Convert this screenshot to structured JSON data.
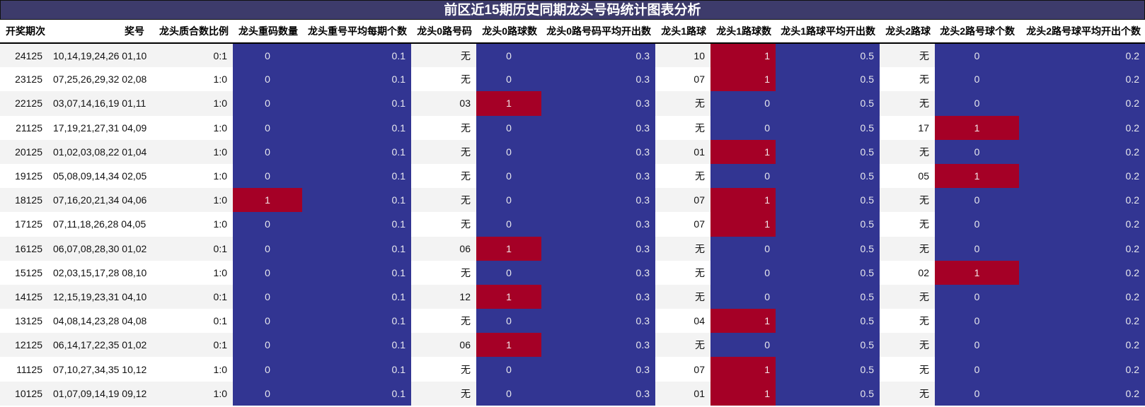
{
  "title": "前区近15期历史同期龙头号码统计图表分析",
  "colors": {
    "title_bg": "#3d3b6b",
    "blue": "#323592",
    "red": "#a50026",
    "stripe": "#f3f3f3"
  },
  "headers": [
    "开奖期次",
    "奖号",
    "龙头质合数比例",
    "龙头重码数量",
    "龙头重号平均每期个数",
    "龙头0路号码",
    "龙头0路球数",
    "龙头0路号码平均开出数",
    "龙头1路球",
    "龙头1路球数",
    "龙头1路球平均开出数",
    "龙头2路球",
    "龙头2路号球个数",
    "龙头2路号球平均开出个数"
  ],
  "rows": [
    {
      "issue": "24125",
      "numbers": "10,14,19,24,26 01,10",
      "ratio": "0:1",
      "repeat": "0",
      "repeat_avg": "0.1",
      "r0": "无",
      "r0_count": "0",
      "r0_avg": "0.3",
      "r1": "10",
      "r1_count": "1",
      "r1_avg": "0.5",
      "r2": "无",
      "r2_count": "0",
      "r2_avg": "0.2"
    },
    {
      "issue": "23125",
      "numbers": "07,25,26,29,32 02,08",
      "ratio": "1:0",
      "repeat": "0",
      "repeat_avg": "0.1",
      "r0": "无",
      "r0_count": "0",
      "r0_avg": "0.3",
      "r1": "07",
      "r1_count": "1",
      "r1_avg": "0.5",
      "r2": "无",
      "r2_count": "0",
      "r2_avg": "0.2"
    },
    {
      "issue": "22125",
      "numbers": "03,07,14,16,19 01,11",
      "ratio": "1:0",
      "repeat": "0",
      "repeat_avg": "0.1",
      "r0": "03",
      "r0_count": "1",
      "r0_avg": "0.3",
      "r1": "无",
      "r1_count": "0",
      "r1_avg": "0.5",
      "r2": "无",
      "r2_count": "0",
      "r2_avg": "0.2"
    },
    {
      "issue": "21125",
      "numbers": "17,19,21,27,31 04,09",
      "ratio": "1:0",
      "repeat": "0",
      "repeat_avg": "0.1",
      "r0": "无",
      "r0_count": "0",
      "r0_avg": "0.3",
      "r1": "无",
      "r1_count": "0",
      "r1_avg": "0.5",
      "r2": "17",
      "r2_count": "1",
      "r2_avg": "0.2"
    },
    {
      "issue": "20125",
      "numbers": "01,02,03,08,22 01,04",
      "ratio": "1:0",
      "repeat": "0",
      "repeat_avg": "0.1",
      "r0": "无",
      "r0_count": "0",
      "r0_avg": "0.3",
      "r1": "01",
      "r1_count": "1",
      "r1_avg": "0.5",
      "r2": "无",
      "r2_count": "0",
      "r2_avg": "0.2"
    },
    {
      "issue": "19125",
      "numbers": "05,08,09,14,34 02,05",
      "ratio": "1:0",
      "repeat": "0",
      "repeat_avg": "0.1",
      "r0": "无",
      "r0_count": "0",
      "r0_avg": "0.3",
      "r1": "无",
      "r1_count": "0",
      "r1_avg": "0.5",
      "r2": "05",
      "r2_count": "1",
      "r2_avg": "0.2"
    },
    {
      "issue": "18125",
      "numbers": "07,16,20,21,34 04,06",
      "ratio": "1:0",
      "repeat": "1",
      "repeat_avg": "0.1",
      "r0": "无",
      "r0_count": "0",
      "r0_avg": "0.3",
      "r1": "07",
      "r1_count": "1",
      "r1_avg": "0.5",
      "r2": "无",
      "r2_count": "0",
      "r2_avg": "0.2"
    },
    {
      "issue": "17125",
      "numbers": "07,11,18,26,28 04,05",
      "ratio": "1:0",
      "repeat": "0",
      "repeat_avg": "0.1",
      "r0": "无",
      "r0_count": "0",
      "r0_avg": "0.3",
      "r1": "07",
      "r1_count": "1",
      "r1_avg": "0.5",
      "r2": "无",
      "r2_count": "0",
      "r2_avg": "0.2"
    },
    {
      "issue": "16125",
      "numbers": "06,07,08,28,30 01,02",
      "ratio": "0:1",
      "repeat": "0",
      "repeat_avg": "0.1",
      "r0": "06",
      "r0_count": "1",
      "r0_avg": "0.3",
      "r1": "无",
      "r1_count": "0",
      "r1_avg": "0.5",
      "r2": "无",
      "r2_count": "0",
      "r2_avg": "0.2"
    },
    {
      "issue": "15125",
      "numbers": "02,03,15,17,28 08,10",
      "ratio": "1:0",
      "repeat": "0",
      "repeat_avg": "0.1",
      "r0": "无",
      "r0_count": "0",
      "r0_avg": "0.3",
      "r1": "无",
      "r1_count": "0",
      "r1_avg": "0.5",
      "r2": "02",
      "r2_count": "1",
      "r2_avg": "0.2"
    },
    {
      "issue": "14125",
      "numbers": "12,15,19,23,31 04,10",
      "ratio": "0:1",
      "repeat": "0",
      "repeat_avg": "0.1",
      "r0": "12",
      "r0_count": "1",
      "r0_avg": "0.3",
      "r1": "无",
      "r1_count": "0",
      "r1_avg": "0.5",
      "r2": "无",
      "r2_count": "0",
      "r2_avg": "0.2"
    },
    {
      "issue": "13125",
      "numbers": "04,08,14,23,28 04,08",
      "ratio": "0:1",
      "repeat": "0",
      "repeat_avg": "0.1",
      "r0": "无",
      "r0_count": "0",
      "r0_avg": "0.3",
      "r1": "04",
      "r1_count": "1",
      "r1_avg": "0.5",
      "r2": "无",
      "r2_count": "0",
      "r2_avg": "0.2"
    },
    {
      "issue": "12125",
      "numbers": "06,14,17,22,35 01,02",
      "ratio": "0:1",
      "repeat": "0",
      "repeat_avg": "0.1",
      "r0": "06",
      "r0_count": "1",
      "r0_avg": "0.3",
      "r1": "无",
      "r1_count": "0",
      "r1_avg": "0.5",
      "r2": "无",
      "r2_count": "0",
      "r2_avg": "0.2"
    },
    {
      "issue": "11125",
      "numbers": "07,10,27,34,35 10,12",
      "ratio": "1:0",
      "repeat": "0",
      "repeat_avg": "0.1",
      "r0": "无",
      "r0_count": "0",
      "r0_avg": "0.3",
      "r1": "07",
      "r1_count": "1",
      "r1_avg": "0.5",
      "r2": "无",
      "r2_count": "0",
      "r2_avg": "0.2"
    },
    {
      "issue": "10125",
      "numbers": "01,07,09,14,19 09,12",
      "ratio": "1:0",
      "repeat": "0",
      "repeat_avg": "0.1",
      "r0": "无",
      "r0_count": "0",
      "r0_avg": "0.3",
      "r1": "01",
      "r1_count": "1",
      "r1_avg": "0.5",
      "r2": "无",
      "r2_count": "0",
      "r2_avg": "0.2"
    }
  ],
  "chart_data": {
    "type": "table",
    "title": "前区近15期历史同期龙头号码统计图表分析",
    "columns": [
      "开奖期次",
      "奖号",
      "龙头质合数比例",
      "龙头重码数量",
      "龙头重号平均每期个数",
      "龙头0路号码",
      "龙头0路球数",
      "龙头0路号码平均开出数",
      "龙头1路球",
      "龙头1路球数",
      "龙头1路球平均开出数",
      "龙头2路球",
      "龙头2路号球个数",
      "龙头2路号球平均开出个数"
    ],
    "rows": [
      [
        "24125",
        "10,14,19,24,26 01,10",
        "0:1",
        0,
        0.1,
        "无",
        0,
        0.3,
        "10",
        1,
        0.5,
        "无",
        0,
        0.2
      ],
      [
        "23125",
        "07,25,26,29,32 02,08",
        "1:0",
        0,
        0.1,
        "无",
        0,
        0.3,
        "07",
        1,
        0.5,
        "无",
        0,
        0.2
      ],
      [
        "22125",
        "03,07,14,16,19 01,11",
        "1:0",
        0,
        0.1,
        "03",
        1,
        0.3,
        "无",
        0,
        0.5,
        "无",
        0,
        0.2
      ],
      [
        "21125",
        "17,19,21,27,31 04,09",
        "1:0",
        0,
        0.1,
        "无",
        0,
        0.3,
        "无",
        0,
        0.5,
        "17",
        1,
        0.2
      ],
      [
        "20125",
        "01,02,03,08,22 01,04",
        "1:0",
        0,
        0.1,
        "无",
        0,
        0.3,
        "01",
        1,
        0.5,
        "无",
        0,
        0.2
      ],
      [
        "19125",
        "05,08,09,14,34 02,05",
        "1:0",
        0,
        0.1,
        "无",
        0,
        0.3,
        "无",
        0,
        0.5,
        "05",
        1,
        0.2
      ],
      [
        "18125",
        "07,16,20,21,34 04,06",
        "1:0",
        1,
        0.1,
        "无",
        0,
        0.3,
        "07",
        1,
        0.5,
        "无",
        0,
        0.2
      ],
      [
        "17125",
        "07,11,18,26,28 04,05",
        "1:0",
        0,
        0.1,
        "无",
        0,
        0.3,
        "07",
        1,
        0.5,
        "无",
        0,
        0.2
      ],
      [
        "16125",
        "06,07,08,28,30 01,02",
        "0:1",
        0,
        0.1,
        "06",
        1,
        0.3,
        "无",
        0,
        0.5,
        "无",
        0,
        0.2
      ],
      [
        "15125",
        "02,03,15,17,28 08,10",
        "1:0",
        0,
        0.1,
        "无",
        0,
        0.3,
        "无",
        0,
        0.5,
        "02",
        1,
        0.2
      ],
      [
        "14125",
        "12,15,19,23,31 04,10",
        "0:1",
        0,
        0.1,
        "12",
        1,
        0.3,
        "无",
        0,
        0.5,
        "无",
        0,
        0.2
      ],
      [
        "13125",
        "04,08,14,23,28 04,08",
        "0:1",
        0,
        0.1,
        "无",
        0,
        0.3,
        "04",
        1,
        0.5,
        "无",
        0,
        0.2
      ],
      [
        "12125",
        "06,14,17,22,35 01,02",
        "0:1",
        0,
        0.1,
        "06",
        1,
        0.3,
        "无",
        0,
        0.5,
        "无",
        0,
        0.2
      ],
      [
        "11125",
        "07,10,27,34,35 10,12",
        "1:0",
        0,
        0.1,
        "无",
        0,
        0.3,
        "07",
        1,
        0.5,
        "无",
        0,
        0.2
      ],
      [
        "10125",
        "01,07,09,14,19 09,12",
        "1:0",
        0,
        0.1,
        "无",
        0,
        0.3,
        "01",
        1,
        0.5,
        "无",
        0,
        0.2
      ]
    ],
    "color_scale": {
      "0": "#323592",
      "1": "#a50026"
    }
  }
}
